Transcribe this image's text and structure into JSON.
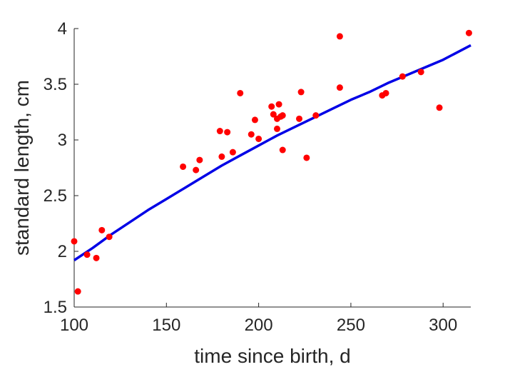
{
  "chart_data": {
    "type": "scatter",
    "title": "",
    "xlabel": "time since birth, d",
    "ylabel": "standard length, cm",
    "xlim": [
      100,
      315
    ],
    "ylim": [
      1.5,
      4
    ],
    "xticks": [
      100,
      150,
      200,
      250,
      300
    ],
    "yticks": [
      1.5,
      2,
      2.5,
      3,
      3.5,
      4
    ],
    "xtick_labels": [
      "100",
      "150",
      "200",
      "250",
      "300"
    ],
    "ytick_labels": [
      "1.5",
      "2",
      "2.5",
      "3",
      "3.5",
      "4"
    ],
    "grid": false,
    "colors": {
      "points": "#ff0000",
      "fit": "#0000e6",
      "axes": "#262626"
    },
    "series": [
      {
        "type": "scatter",
        "x": [
          100,
          102,
          107,
          112,
          115,
          119,
          159,
          166,
          168,
          179,
          180,
          183,
          186,
          190,
          196,
          198,
          200,
          207,
          208,
          210,
          210,
          211,
          212,
          213,
          213,
          222,
          223,
          226,
          231,
          244,
          244,
          267,
          269,
          278,
          288,
          298,
          314
        ],
        "y": [
          2.09,
          1.64,
          1.97,
          1.94,
          2.19,
          2.13,
          2.76,
          2.73,
          2.82,
          3.08,
          2.85,
          3.07,
          2.89,
          3.42,
          3.05,
          3.18,
          3.01,
          3.3,
          3.23,
          3.1,
          3.19,
          3.32,
          3.21,
          3.22,
          2.91,
          3.19,
          3.43,
          2.84,
          3.22,
          3.93,
          3.47,
          3.4,
          3.42,
          3.57,
          3.61,
          3.29,
          3.96
        ]
      },
      {
        "type": "line",
        "x": [
          100,
          110,
          120,
          130,
          140,
          150,
          160,
          170,
          180,
          190,
          200,
          210,
          220,
          230,
          240,
          250,
          260,
          270,
          280,
          290,
          300,
          315
        ],
        "y": [
          1.92,
          2.03,
          2.15,
          2.26,
          2.37,
          2.47,
          2.57,
          2.67,
          2.77,
          2.86,
          2.95,
          3.04,
          3.12,
          3.2,
          3.28,
          3.36,
          3.43,
          3.51,
          3.58,
          3.65,
          3.72,
          3.85
        ]
      }
    ]
  }
}
